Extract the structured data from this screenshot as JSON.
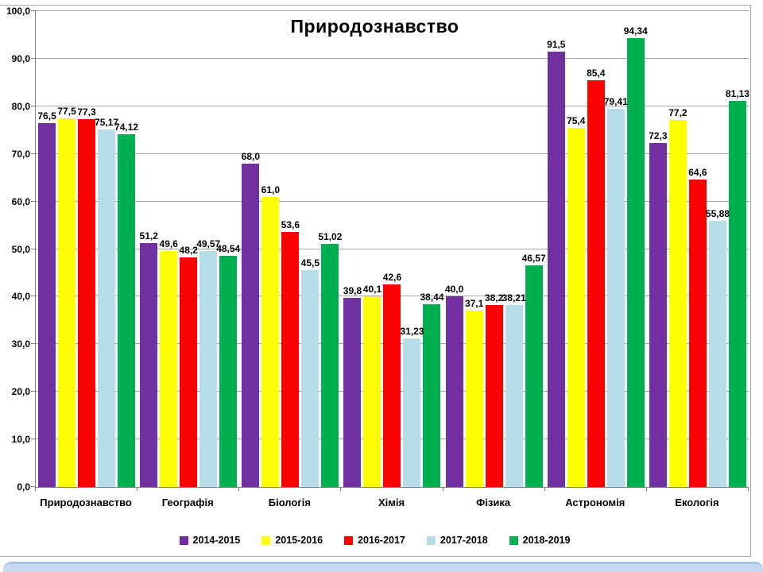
{
  "title": "Природознавство",
  "colors": {
    "frame_border": "#A6A6A6",
    "gridline": "#A6A6A6",
    "axis": "#808080",
    "footer_band": "#C7D9F1",
    "footer_band_edge": "#A9C6E8",
    "background": "#FFFFFF",
    "text": "#000000"
  },
  "chart_data": {
    "type": "bar",
    "title": "Природознавство",
    "categories": [
      "Природознавство",
      "Географія",
      "Біологія",
      "Хімія",
      "Фізика",
      "Астрономія",
      "Екологія"
    ],
    "series": [
      {
        "name": "2014-2015",
        "color": "#7030A0",
        "values": [
          76.5,
          51.2,
          68.0,
          39.8,
          40.0,
          91.5,
          72.3
        ],
        "labels": [
          "76,5",
          "51,2",
          "68,0",
          "39,8",
          "40,0",
          "91,5",
          "72,3"
        ]
      },
      {
        "name": "2015-2016",
        "color": "#FFFF00",
        "values": [
          77.5,
          49.6,
          61.0,
          40.1,
          37.1,
          75.4,
          77.2
        ],
        "labels": [
          "77,5",
          "49,6",
          "61,0",
          "40,1",
          "37,1",
          "75,4",
          "77,2"
        ]
      },
      {
        "name": "2016-2017",
        "color": "#FF0000",
        "values": [
          77.3,
          48.2,
          53.6,
          42.6,
          38.2,
          85.4,
          64.6
        ],
        "labels": [
          "77,3",
          "48,2",
          "53,6",
          "42,6",
          "38,2",
          "85,4",
          "64,6"
        ]
      },
      {
        "name": "2017-2018",
        "color": "#B7DEE8",
        "values": [
          75.17,
          49.57,
          45.5,
          31.23,
          38.21,
          79.41,
          55.88
        ],
        "labels": [
          "75,17",
          "49,57",
          "45,5",
          "31,23",
          "38,21",
          "79,41",
          "55,88"
        ]
      },
      {
        "name": "2018-2019",
        "color": "#00B050",
        "values": [
          74.12,
          48.54,
          51.02,
          38.44,
          46.57,
          94.34,
          81.13
        ],
        "labels": [
          "74,12",
          "48,54",
          "51,02",
          "38,44",
          "46,57",
          "94,34",
          "81,13"
        ]
      }
    ],
    "ylim": [
      0,
      100
    ],
    "ytick_step": 10,
    "ytick_labels": [
      "0,0",
      "10,0",
      "20,0",
      "30,0",
      "40,0",
      "50,0",
      "60,0",
      "70,0",
      "80,0",
      "90,0",
      "100,0"
    ],
    "grid": true,
    "legend_position": "bottom"
  }
}
